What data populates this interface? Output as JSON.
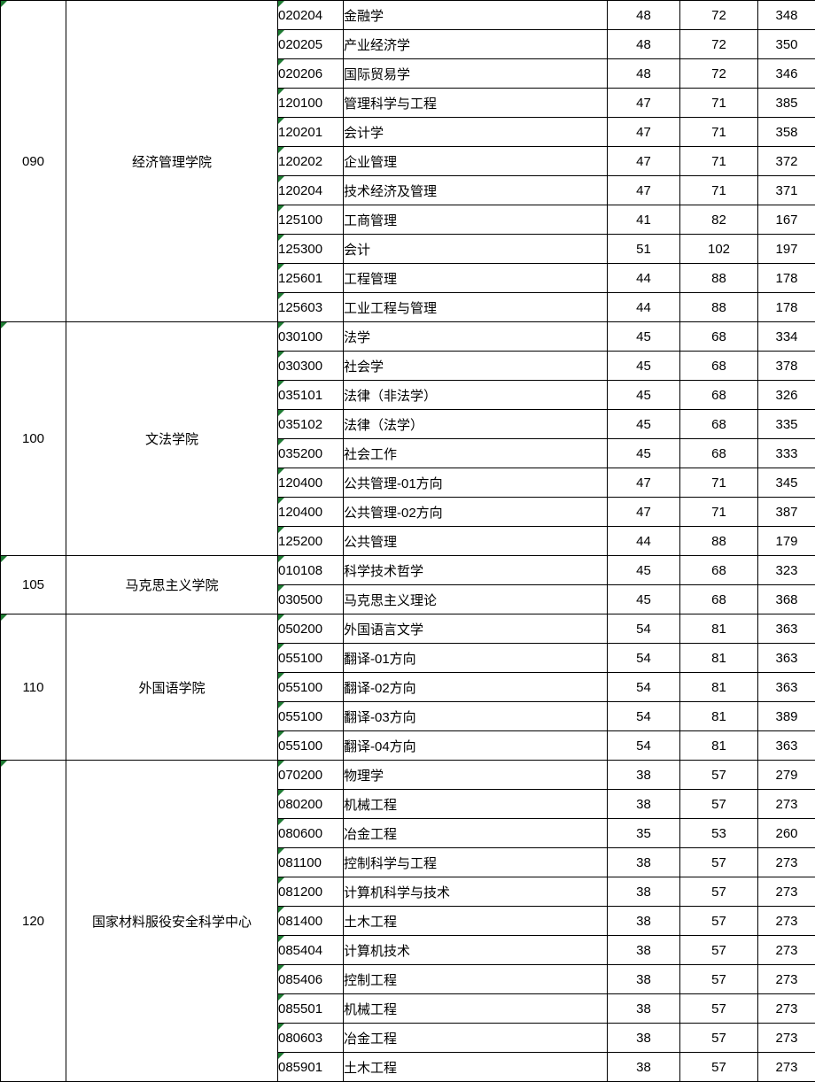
{
  "colors": {
    "border": "#000000",
    "text": "#000000",
    "background": "#ffffff",
    "error_indicator_green": "#1e7b33"
  },
  "sections": [
    {
      "code": "090",
      "college": "经济管理学院",
      "rows": [
        {
          "major_code": "020204",
          "major_name": "金融学",
          "values": [
            "48",
            "72",
            "348"
          ]
        },
        {
          "major_code": "020205",
          "major_name": "产业经济学",
          "values": [
            "48",
            "72",
            "350"
          ]
        },
        {
          "major_code": "020206",
          "major_name": "国际贸易学",
          "values": [
            "48",
            "72",
            "346"
          ]
        },
        {
          "major_code": "120100",
          "major_name": "管理科学与工程",
          "values": [
            "47",
            "71",
            "385"
          ]
        },
        {
          "major_code": "120201",
          "major_name": "会计学",
          "values": [
            "47",
            "71",
            "358"
          ]
        },
        {
          "major_code": "120202",
          "major_name": "企业管理",
          "values": [
            "47",
            "71",
            "372"
          ]
        },
        {
          "major_code": "120204",
          "major_name": "技术经济及管理",
          "values": [
            "47",
            "71",
            "371"
          ]
        },
        {
          "major_code": "125100",
          "major_name": "工商管理",
          "values": [
            "41",
            "82",
            "167"
          ]
        },
        {
          "major_code": "125300",
          "major_name": "会计",
          "values": [
            "51",
            "102",
            "197"
          ]
        },
        {
          "major_code": "125601",
          "major_name": "工程管理",
          "values": [
            "44",
            "88",
            "178"
          ]
        },
        {
          "major_code": "125603",
          "major_name": "工业工程与管理",
          "values": [
            "44",
            "88",
            "178"
          ]
        }
      ]
    },
    {
      "code": "100",
      "college": "文法学院",
      "rows": [
        {
          "major_code": "030100",
          "major_name": "法学",
          "values": [
            "45",
            "68",
            "334"
          ]
        },
        {
          "major_code": "030300",
          "major_name": "社会学",
          "values": [
            "45",
            "68",
            "378"
          ]
        },
        {
          "major_code": "035101",
          "major_name": "法律（非法学）",
          "values": [
            "45",
            "68",
            "326"
          ]
        },
        {
          "major_code": "035102",
          "major_name": "法律（法学）",
          "values": [
            "45",
            "68",
            "335"
          ]
        },
        {
          "major_code": "035200",
          "major_name": "社会工作",
          "values": [
            "45",
            "68",
            "333"
          ]
        },
        {
          "major_code": "120400",
          "major_name": "公共管理-01方向",
          "values": [
            "47",
            "71",
            "345"
          ]
        },
        {
          "major_code": "120400",
          "major_name": "公共管理-02方向",
          "values": [
            "47",
            "71",
            "387"
          ]
        },
        {
          "major_code": "125200",
          "major_name": "公共管理",
          "values": [
            "44",
            "88",
            "179"
          ]
        }
      ]
    },
    {
      "code": "105",
      "college": "马克思主义学院",
      "rows": [
        {
          "major_code": "010108",
          "major_name": "科学技术哲学",
          "values": [
            "45",
            "68",
            "323"
          ]
        },
        {
          "major_code": "030500",
          "major_name": "马克思主义理论",
          "values": [
            "45",
            "68",
            "368"
          ]
        }
      ]
    },
    {
      "code": "110",
      "college": "外国语学院",
      "rows": [
        {
          "major_code": "050200",
          "major_name": "外国语言文学",
          "values": [
            "54",
            "81",
            "363"
          ]
        },
        {
          "major_code": "055100",
          "major_name": "翻译-01方向",
          "values": [
            "54",
            "81",
            "363"
          ]
        },
        {
          "major_code": "055100",
          "major_name": "翻译-02方向",
          "values": [
            "54",
            "81",
            "363"
          ]
        },
        {
          "major_code": "055100",
          "major_name": "翻译-03方向",
          "values": [
            "54",
            "81",
            "389"
          ]
        },
        {
          "major_code": "055100",
          "major_name": "翻译-04方向",
          "values": [
            "54",
            "81",
            "363"
          ]
        }
      ]
    },
    {
      "code": "120",
      "college": "国家材料服役安全科学中心",
      "rows": [
        {
          "major_code": "070200",
          "major_name": "物理学",
          "values": [
            "38",
            "57",
            "279"
          ]
        },
        {
          "major_code": "080200",
          "major_name": "机械工程",
          "values": [
            "38",
            "57",
            "273"
          ]
        },
        {
          "major_code": "080600",
          "major_name": "冶金工程",
          "values": [
            "35",
            "53",
            "260"
          ]
        },
        {
          "major_code": "081100",
          "major_name": "控制科学与工程",
          "values": [
            "38",
            "57",
            "273"
          ]
        },
        {
          "major_code": "081200",
          "major_name": "计算机科学与技术",
          "values": [
            "38",
            "57",
            "273"
          ]
        },
        {
          "major_code": "081400",
          "major_name": "土木工程",
          "values": [
            "38",
            "57",
            "273"
          ]
        },
        {
          "major_code": "085404",
          "major_name": "计算机技术",
          "values": [
            "38",
            "57",
            "273"
          ]
        },
        {
          "major_code": "085406",
          "major_name": "控制工程",
          "values": [
            "38",
            "57",
            "273"
          ]
        },
        {
          "major_code": "085501",
          "major_name": "机械工程",
          "values": [
            "38",
            "57",
            "273"
          ]
        },
        {
          "major_code": "080603",
          "major_name": "冶金工程",
          "values": [
            "38",
            "57",
            "273"
          ]
        },
        {
          "major_code": "085901",
          "major_name": "土木工程",
          "values": [
            "38",
            "57",
            "273"
          ]
        }
      ]
    }
  ]
}
